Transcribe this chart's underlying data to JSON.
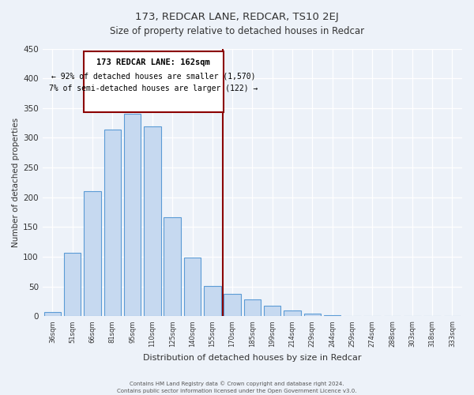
{
  "title": "173, REDCAR LANE, REDCAR, TS10 2EJ",
  "subtitle": "Size of property relative to detached houses in Redcar",
  "xlabel": "Distribution of detached houses by size in Redcar",
  "ylabel": "Number of detached properties",
  "bar_labels": [
    "36sqm",
    "51sqm",
    "66sqm",
    "81sqm",
    "95sqm",
    "110sqm",
    "125sqm",
    "140sqm",
    "155sqm",
    "170sqm",
    "185sqm",
    "199sqm",
    "214sqm",
    "229sqm",
    "244sqm",
    "259sqm",
    "274sqm",
    "288sqm",
    "303sqm",
    "318sqm",
    "333sqm"
  ],
  "bar_values": [
    7,
    106,
    210,
    314,
    341,
    319,
    166,
    99,
    51,
    37,
    28,
    18,
    10,
    4,
    2,
    1,
    0,
    0,
    0,
    0,
    0
  ],
  "bar_color": "#c6d9f0",
  "bar_edge_color": "#5b9bd5",
  "vline_x": 8.53,
  "vline_color": "#8B0000",
  "annotation_title": "173 REDCAR LANE: 162sqm",
  "annotation_line1": "← 92% of detached houses are smaller (1,570)",
  "annotation_line2": "7% of semi-detached houses are larger (122) →",
  "annotation_box_color": "#8B0000",
  "ylim": [
    0,
    450
  ],
  "yticks": [
    0,
    50,
    100,
    150,
    200,
    250,
    300,
    350,
    400,
    450
  ],
  "footer1": "Contains HM Land Registry data © Crown copyright and database right 2024.",
  "footer2": "Contains public sector information licensed under the Open Government Licence v3.0.",
  "bg_color": "#edf2f9",
  "plot_bg_color": "#edf2f9",
  "grid_color": "#ffffff"
}
